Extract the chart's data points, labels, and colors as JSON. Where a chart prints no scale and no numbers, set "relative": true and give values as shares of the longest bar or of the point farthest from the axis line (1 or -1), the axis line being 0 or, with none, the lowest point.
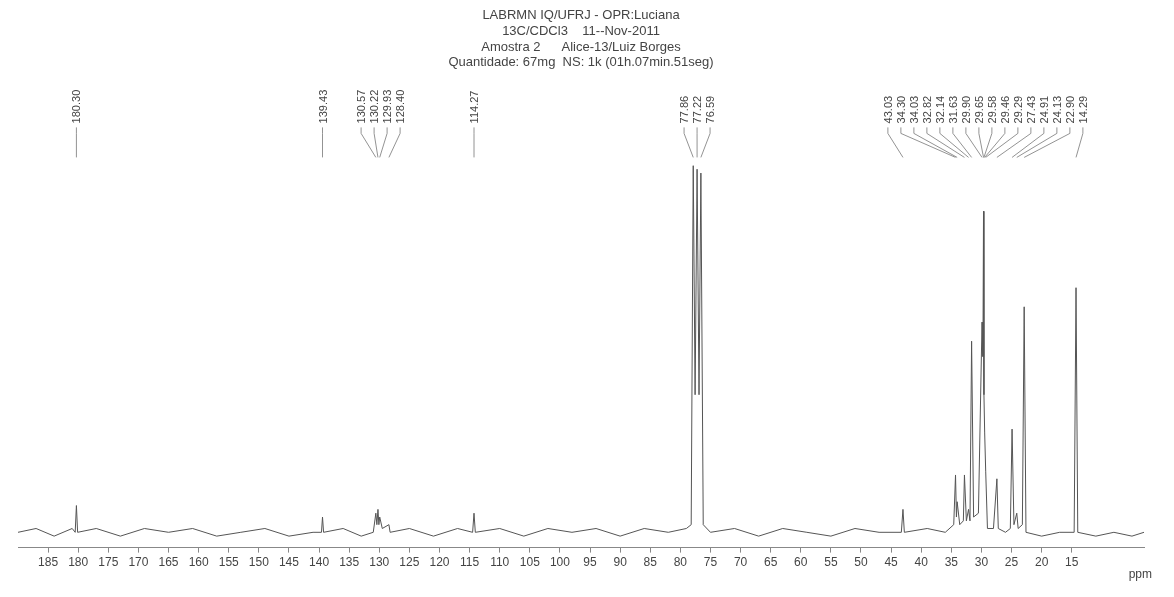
{
  "chart_data": {
    "type": "line",
    "title": "LABRMN IQ/UFRJ - OPR:Luciana\n13C/CDCl3    11--Nov-2011\nAmostra 2      Alice-13/Luiz Borges\nQuantidade: 67mg  NS: 1k (01h.07min.51seg)",
    "xlabel": "ppm",
    "relative": true,
    "grid": false,
    "legend": false,
    "marker": "none",
    "line_style": "solid",
    "xlim": [
      190,
      3
    ],
    "xticks": [
      185,
      180,
      175,
      170,
      165,
      160,
      155,
      150,
      145,
      140,
      135,
      130,
      125,
      120,
      115,
      110,
      105,
      100,
      95,
      90,
      85,
      80,
      75,
      70,
      65,
      60,
      55,
      50,
      45,
      40,
      35,
      30,
      25,
      20,
      15
    ],
    "series": [
      {
        "color": "#555555",
        "x": [
          190,
          187,
          184,
          181,
          180.5,
          180.3,
          180.1,
          177,
          173,
          169,
          165,
          161,
          157,
          153,
          149,
          145,
          141,
          139.6,
          139.43,
          139.25,
          136,
          133,
          131,
          130.57,
          130.4,
          130.22,
          130.07,
          129.93,
          129.5,
          128.4,
          128.2,
          125,
          121,
          117,
          114.5,
          114.27,
          114.05,
          110,
          106,
          102,
          98,
          94,
          90,
          86,
          82,
          79,
          78.2,
          77.86,
          77.55,
          77.22,
          76.9,
          76.59,
          76.2,
          75,
          71,
          67,
          63,
          59,
          55,
          51,
          47,
          43.3,
          43.03,
          42.8,
          39,
          36,
          34.6,
          34.3,
          34.15,
          34.03,
          33.6,
          33,
          32.82,
          32.5,
          32.14,
          31.9,
          31.63,
          31.3,
          30.5,
          29.9,
          29.75,
          29.65,
          29.58,
          29.46,
          29.29,
          29,
          28,
          27.43,
          27.2,
          26,
          25.2,
          24.91,
          24.6,
          24.13,
          23.9,
          23.2,
          22.9,
          22.6,
          20,
          17,
          14.6,
          14.29,
          14,
          11,
          8,
          5,
          3
        ],
        "values": [
          0.04,
          0.05,
          0.03,
          0.05,
          0.04,
          0.11,
          0.04,
          0.05,
          0.03,
          0.05,
          0.04,
          0.05,
          0.03,
          0.04,
          0.05,
          0.03,
          0.04,
          0.04,
          0.08,
          0.04,
          0.05,
          0.03,
          0.04,
          0.09,
          0.06,
          0.1,
          0.06,
          0.08,
          0.05,
          0.06,
          0.04,
          0.05,
          0.03,
          0.05,
          0.04,
          0.09,
          0.04,
          0.05,
          0.03,
          0.05,
          0.04,
          0.05,
          0.03,
          0.05,
          0.04,
          0.05,
          0.06,
          1,
          0.4,
          0.99,
          0.4,
          0.98,
          0.06,
          0.04,
          0.05,
          0.03,
          0.05,
          0.04,
          0.03,
          0.05,
          0.04,
          0.04,
          0.1,
          0.04,
          0.05,
          0.04,
          0.06,
          0.19,
          0.08,
          0.12,
          0.06,
          0.07,
          0.19,
          0.07,
          0.1,
          0.07,
          0.54,
          0.08,
          0.09,
          0.59,
          0.5,
          0.88,
          0.4,
          0.3,
          0.2,
          0.05,
          0.05,
          0.18,
          0.05,
          0.04,
          0.05,
          0.31,
          0.06,
          0.09,
          0.05,
          0.06,
          0.63,
          0.04,
          0.03,
          0.04,
          0.04,
          0.68,
          0.04,
          0.03,
          0.04,
          0.03,
          0.04
        ]
      }
    ],
    "annotations": [
      {
        "text": "180.30",
        "x": 180.3
      },
      {
        "text": "139.43",
        "x": 139.43
      },
      {
        "text": "130.57",
        "x": 130.57
      },
      {
        "text": "130.22",
        "x": 130.22
      },
      {
        "text": "129.93",
        "x": 129.93
      },
      {
        "text": "128.40",
        "x": 128.4
      },
      {
        "text": "114.27",
        "x": 114.27
      },
      {
        "text": "77.86",
        "x": 77.86
      },
      {
        "text": "77.22",
        "x": 77.22
      },
      {
        "text": "76.59",
        "x": 76.59
      },
      {
        "text": "43.03",
        "x": 43.03
      },
      {
        "text": "34.30",
        "x": 34.3
      },
      {
        "text": "34.03",
        "x": 34.03
      },
      {
        "text": "32.82",
        "x": 32.82
      },
      {
        "text": "32.14",
        "x": 32.14
      },
      {
        "text": "31.63",
        "x": 31.63
      },
      {
        "text": "29.90",
        "x": 29.9
      },
      {
        "text": "29.65",
        "x": 29.65
      },
      {
        "text": "29.58",
        "x": 29.58
      },
      {
        "text": "29.46",
        "x": 29.46
      },
      {
        "text": "29.29",
        "x": 29.29
      },
      {
        "text": "27.43",
        "x": 27.43
      },
      {
        "text": "24.91",
        "x": 24.91
      },
      {
        "text": "24.13",
        "x": 24.13
      },
      {
        "text": "22.90",
        "x": 22.9
      },
      {
        "text": "14.29",
        "x": 14.29
      }
    ]
  }
}
